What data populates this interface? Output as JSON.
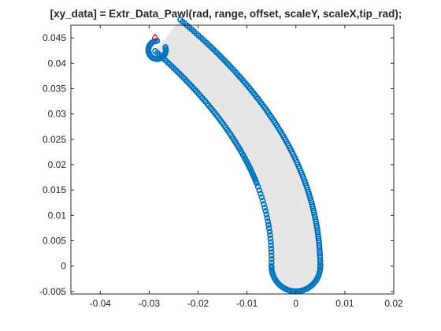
{
  "chart_data": {
    "type": "scatter",
    "title": "[xy_data] = Extr_Data_Pawl(rad, range, offset, scaleY, scaleX,tip_rad);",
    "xlabel": "",
    "ylabel": "",
    "xlim": [
      -0.046,
      0.02
    ],
    "ylim": [
      -0.0055,
      0.0475
    ],
    "xticks": [
      -0.04,
      -0.03,
      -0.02,
      -0.01,
      0,
      0.01,
      0.02
    ],
    "xtick_labels": [
      "-0.04",
      "-0.03",
      "-0.02",
      "-0.01",
      "0",
      "0.01",
      "0.02"
    ],
    "yticks": [
      -0.005,
      0,
      0.005,
      0.01,
      0.015,
      0.02,
      0.025,
      0.03,
      0.035,
      0.04,
      0.045
    ],
    "ytick_labels": [
      "-0.005",
      "0",
      "0.005",
      "0.01",
      "0.015",
      "0.02",
      "0.025",
      "0.03",
      "0.035",
      "0.04",
      "0.045"
    ],
    "grid": false,
    "legend": "none",
    "colors": {
      "marker": "#0072BD",
      "fill": "#E6E6E6",
      "highlight": "#E8001C",
      "axes": "#262626",
      "background": "#ffffff"
    },
    "shape": {
      "description_points_outer": [
        [
          0.005,
          0.0
        ],
        [
          0.0048,
          0.004
        ],
        [
          0.0043,
          0.008
        ],
        [
          0.0035,
          0.012
        ],
        [
          0.0023,
          0.016
        ],
        [
          0.0008,
          0.02
        ],
        [
          -0.001,
          0.024
        ],
        [
          -0.0033,
          0.028
        ],
        [
          -0.0062,
          0.032
        ],
        [
          -0.0097,
          0.036
        ],
        [
          -0.0138,
          0.0398
        ],
        [
          -0.0185,
          0.0428
        ],
        [
          -0.0222,
          0.045
        ]
      ],
      "inner_start": [
        -0.0222,
        0.045
      ],
      "outer_end_tip": [
        -0.0292,
        0.0455
      ]
    },
    "series": [
      {
        "type": "marker-outline",
        "values": "pawl boundary points"
      },
      {
        "type": "highlight-point",
        "x": -0.0288,
        "y": 0.045
      }
    ]
  }
}
